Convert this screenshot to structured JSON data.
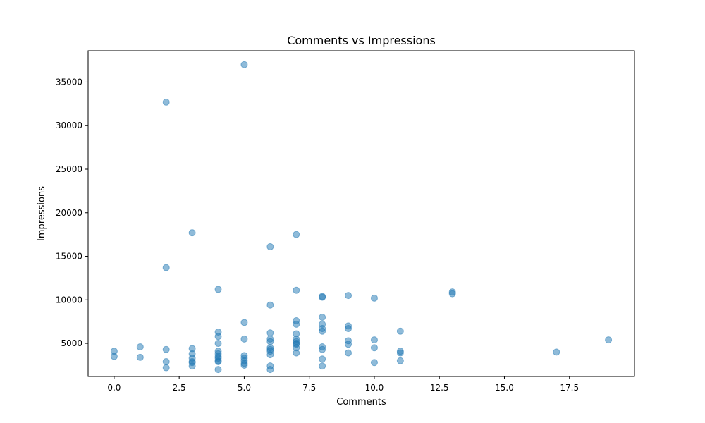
{
  "chart_data": {
    "type": "scatter",
    "title": "Comments vs Impressions",
    "xlabel": "Comments",
    "ylabel": "Impressions",
    "xlim": [
      -1,
      20
    ],
    "ylim": [
      1200,
      38600
    ],
    "xticks": [
      0.0,
      2.5,
      5.0,
      7.5,
      10.0,
      12.5,
      15.0,
      17.5
    ],
    "xtick_labels": [
      "0.0",
      "2.5",
      "5.0",
      "7.5",
      "10.0",
      "12.5",
      "15.0",
      "17.5"
    ],
    "yticks": [
      5000,
      10000,
      15000,
      20000,
      25000,
      30000,
      35000
    ],
    "ytick_labels": [
      "5000",
      "10000",
      "15000",
      "20000",
      "25000",
      "30000",
      "35000"
    ],
    "grid": false,
    "marker_color": "#1f77b4",
    "marker_alpha": 0.5,
    "series": [
      {
        "x": [
          0,
          0,
          1,
          1,
          2,
          2,
          2,
          2,
          2,
          3,
          3,
          3,
          3,
          3,
          3,
          3,
          4,
          4,
          4,
          4,
          4,
          4,
          4,
          4,
          4,
          4,
          4,
          5,
          5,
          5,
          5,
          5,
          5,
          5,
          5,
          6,
          6,
          6,
          6,
          6,
          6,
          6,
          6,
          6,
          6,
          6,
          7,
          7,
          7,
          7,
          7,
          7,
          7,
          7,
          7,
          7,
          7,
          8,
          8,
          8,
          8,
          8,
          8,
          8,
          8,
          8,
          8,
          9,
          9,
          9,
          9,
          9,
          9,
          10,
          10,
          10,
          10,
          11,
          11,
          11,
          11,
          13,
          13,
          17,
          19
        ],
        "y": [
          4100,
          3500,
          4600,
          3400,
          32700,
          13700,
          4300,
          2900,
          2200,
          17700,
          4400,
          3800,
          3300,
          2900,
          2800,
          2400,
          11200,
          6300,
          5800,
          5000,
          4100,
          3800,
          3500,
          3000,
          2900,
          2000,
          3300,
          37000,
          7400,
          5500,
          3600,
          3300,
          3000,
          2700,
          2500,
          16100,
          9400,
          6200,
          5500,
          5200,
          4500,
          4100,
          3700,
          2400,
          2000,
          4300,
          17500,
          11100,
          7600,
          7200,
          6100,
          5500,
          5200,
          4900,
          4500,
          3900,
          5000,
          10400,
          10300,
          8000,
          7200,
          6700,
          6400,
          4600,
          4300,
          3200,
          2400,
          10500,
          7000,
          6700,
          5300,
          4900,
          3900,
          10200,
          5400,
          4500,
          2800,
          6400,
          4100,
          3900,
          3000,
          10900,
          10700,
          4000,
          5400
        ]
      }
    ]
  }
}
